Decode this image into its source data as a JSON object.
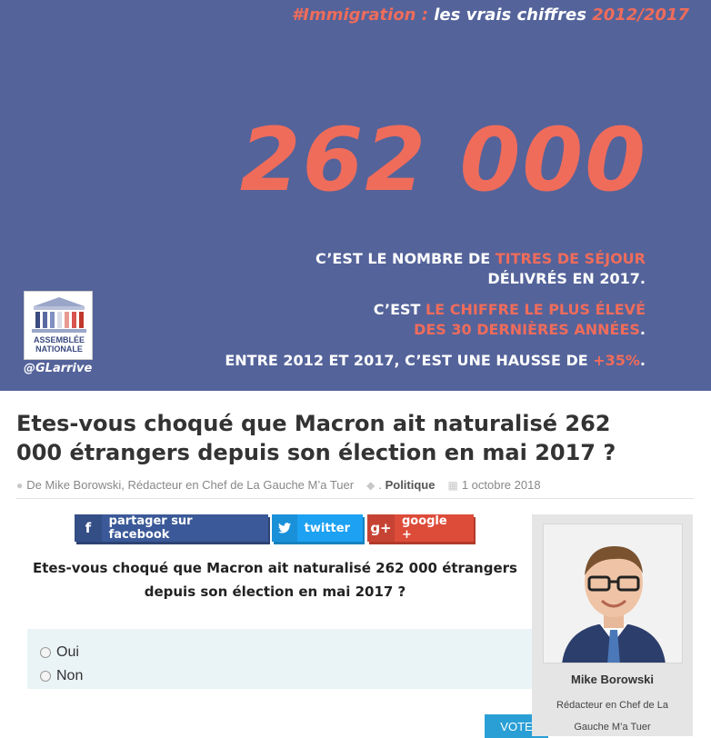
{
  "banner": {
    "top_prefix": "#Immigration :",
    "top_middle": " les vrais chiffres ",
    "top_years": "2012/2017",
    "big_number": "262 000",
    "line1_a": "C’EST LE NOMBRE DE ",
    "line1_b": "TITRES DE SÉJOUR",
    "line2": "DÉLIVRÉS EN 2017.",
    "line3_a": "C’EST ",
    "line3_b": "LE CHIFFRE LE PLUS ÉLEVÉ",
    "line4_b": "DES 30 DERNIÈRES ANNÉES",
    "line4_end": ".",
    "line5_a": "ENTRE 2012 ET 2017, C’EST UNE HAUSSE DE ",
    "line5_b": "+35%",
    "line5_end": ".",
    "logo_line1": "ASSEMBLÉE",
    "logo_line2": "NATIONALE",
    "handle": "@GLarrive"
  },
  "article": {
    "title": "Etes-vous choqué que Macron ait naturalisé 262 000 étrangers depuis son élection en mai 2017 ?",
    "author_meta": "De Mike Borowski, Rédacteur en Chef de La Gauche M’a Tuer",
    "category_prefix": ".",
    "category": "Politique",
    "date": "1 octobre 2018"
  },
  "share": {
    "facebook": "partager sur facebook",
    "twitter": "twitter",
    "google": "google +"
  },
  "poll": {
    "question": "Etes-vous choqué que Macron ait naturalisé 262 000 étrangers depuis son élection en mai 2017 ?",
    "options": [
      "Oui",
      "Non"
    ],
    "vote_label": "VOTE"
  },
  "author_card": {
    "name": "Mike Borowski",
    "role": "Rédacteur en Chef de La Gauche M’a Tuer"
  },
  "colors": {
    "banner_bg": "#54639a",
    "accent": "#ef6c5b",
    "facebook": "#3b5998",
    "twitter": "#1da1f2",
    "google": "#dd4b39",
    "vote": "#2a9fd6"
  }
}
